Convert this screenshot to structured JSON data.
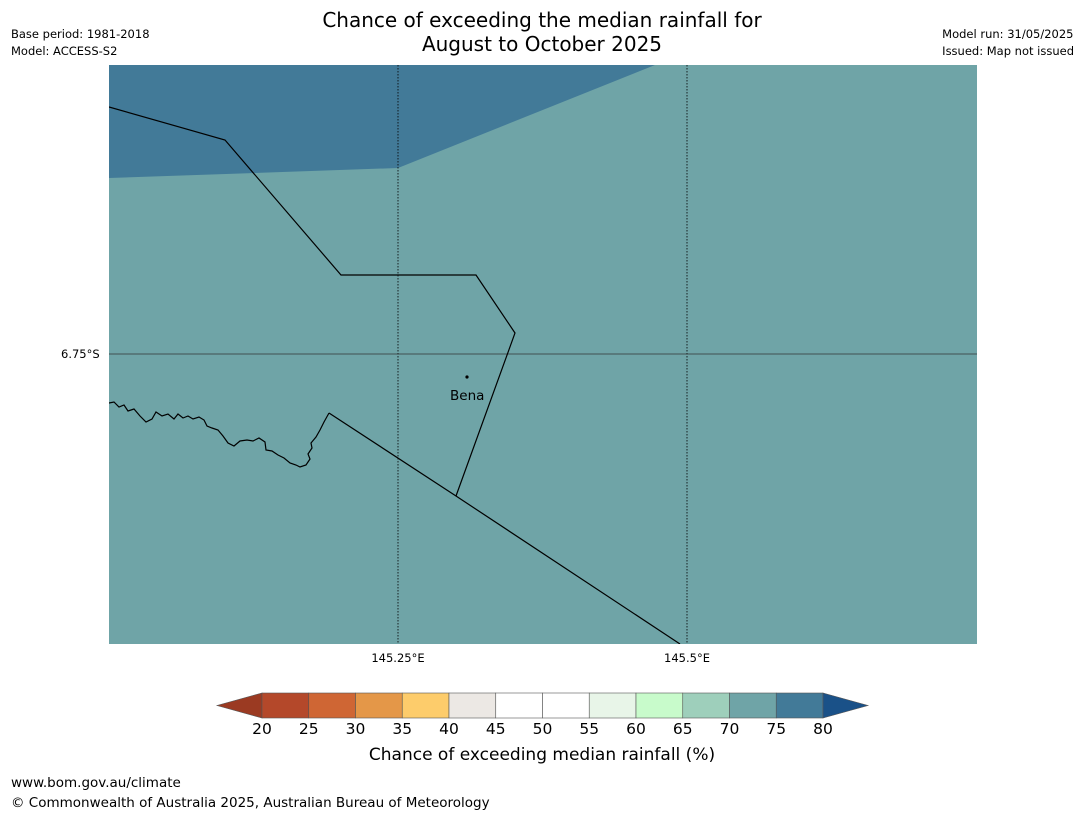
{
  "title_line1": "Chance of exceeding the median rainfall for",
  "title_line2": "August to October 2025",
  "meta_left": [
    "Base period: 1981-2018",
    "Model: ACCESS-S2"
  ],
  "meta_right": [
    "Model run: 31/05/2025",
    "Issued: Map not issued"
  ],
  "map": {
    "lat_label": "6.75°S",
    "lon_labels": [
      "145.25°E",
      "145.5°E"
    ],
    "place": "Bena",
    "region_colors": {
      "upper_band": "#427a98",
      "main": "#6fa4a7"
    }
  },
  "colorbar": {
    "ticks": [
      "20",
      "25",
      "30",
      "35",
      "40",
      "45",
      "50",
      "55",
      "60",
      "65",
      "70",
      "75",
      "80"
    ],
    "colors": [
      "#9b3a22",
      "#b4482a",
      "#cf6634",
      "#e49748",
      "#fdcc6b",
      "#ece8e4",
      "#ffffff",
      "#ffffff",
      "#e8f5e8",
      "#c8fbcb",
      "#9ecfbb",
      "#6fa4a7",
      "#427a98",
      "#1a5188"
    ],
    "label": "Chance of exceeding median rainfall (%)"
  },
  "footer_url": "www.bom.gov.au/climate",
  "footer_copyright": "© Commonwealth of Australia 2025, Australian Bureau of Meteorology"
}
